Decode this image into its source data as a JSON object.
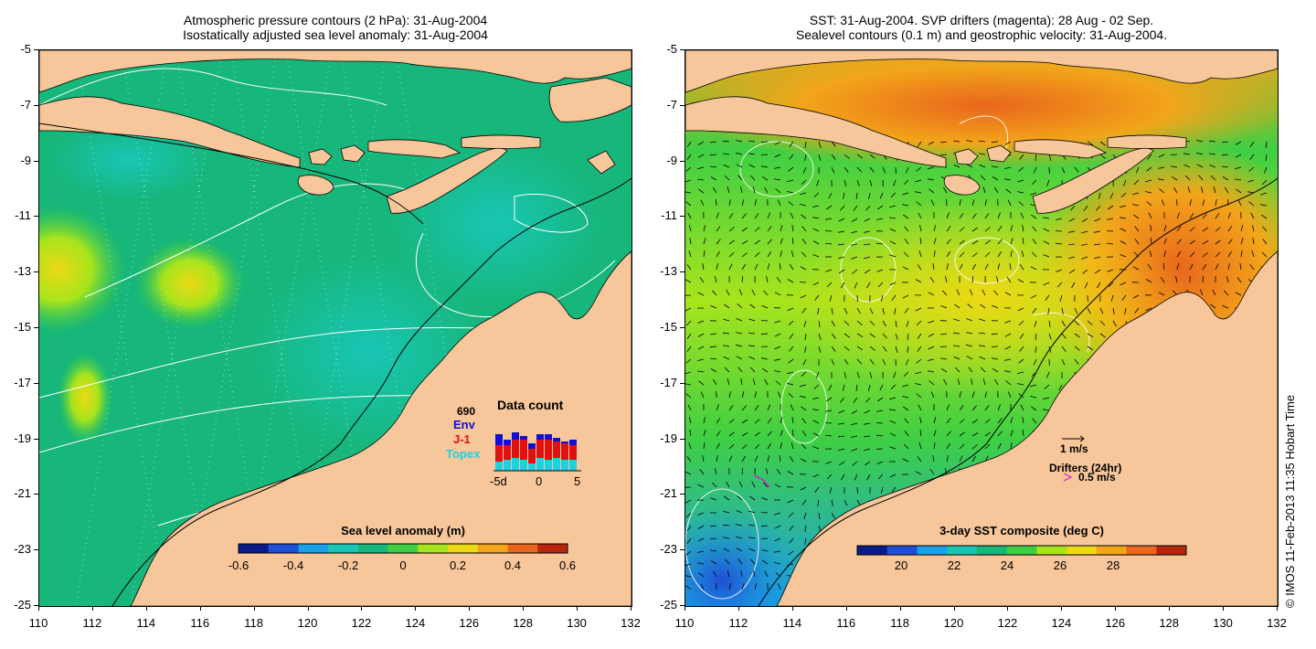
{
  "left_panel": {
    "title_line1": "Atmospheric pressure contours (2 hPa): 31-Aug-2004",
    "title_line2": "Isostatically adjusted sea level anomaly: 31-Aug-2004",
    "colorbar": {
      "title": "Sea level anomaly (m)",
      "ticks": [
        "-0.6",
        "-0.4",
        "-0.2",
        "0",
        "0.2",
        "0.4",
        "0.6"
      ],
      "colors": [
        "#0a1a8c",
        "#1f4fd6",
        "#1aa0e6",
        "#19c6b6",
        "#17b67a",
        "#3fcf44",
        "#a7e41c",
        "#ecd914",
        "#f2a51a",
        "#e9661c",
        "#b8260f"
      ]
    },
    "data_count": {
      "title": "Data count",
      "max_label": "690",
      "legend": [
        "Env",
        "J-1",
        "Topex"
      ],
      "legend_colors": [
        "#1010d0",
        "#e01010",
        "#20d0e0"
      ],
      "xticks": [
        "-5d",
        "0",
        "5"
      ]
    }
  },
  "right_panel": {
    "title_line1": "SST: 31-Aug-2004. SVP drifters (magenta): 28 Aug - 02 Sep.",
    "title_line2": "Sealevel contours (0.1 m) and geostrophic velocity: 31-Aug-2004.",
    "colorbar": {
      "title": "3-day SST composite (deg C)",
      "ticks": [
        "20",
        "22",
        "24",
        "26",
        "28"
      ],
      "colors": [
        "#0a1a8c",
        "#1f4fd6",
        "#1aa0e6",
        "#19c6b6",
        "#17b67a",
        "#3fcf44",
        "#a7e41c",
        "#ecd914",
        "#f2a51a",
        "#e9661c",
        "#b8260f"
      ]
    },
    "velocity_legend": "1 m/s",
    "drifter_legend_title": "Drifters (24hr)",
    "drifter_legend_value": "0.5 m/s"
  },
  "y_ticks": [
    "-5",
    "-7",
    "-9",
    "-11",
    "-13",
    "-15",
    "-17",
    "-19",
    "-21",
    "-23",
    "-25"
  ],
  "x_ticks": [
    "110",
    "112",
    "114",
    "116",
    "118",
    "120",
    "122",
    "124",
    "126",
    "128",
    "130",
    "132"
  ],
  "credit": "© IMOS 11-Feb-2013 11:35 Hobart Time",
  "colors": {
    "land": "#f7c69a",
    "ocean_left": "#17b67a",
    "ocean_right": "#a7e41c"
  }
}
